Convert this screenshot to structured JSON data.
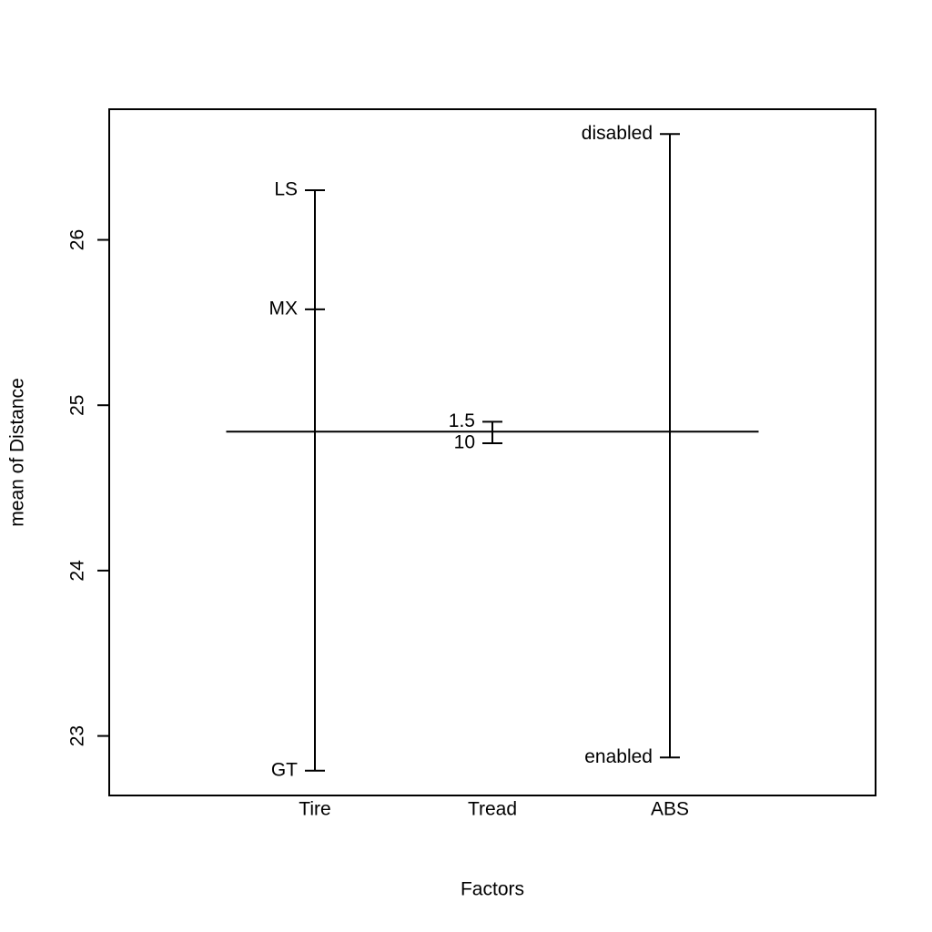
{
  "chart_data": {
    "type": "design",
    "xlabel": "Factors",
    "ylabel": "mean of Distance",
    "categories": [
      "Tire",
      "Tread",
      "ABS"
    ],
    "factors": [
      {
        "levels": [
          "LS",
          "MX",
          "GT"
        ],
        "values": [
          26.3,
          25.58,
          22.79
        ]
      },
      {
        "levels": [
          "1.5",
          "10"
        ],
        "values": [
          24.9,
          24.77
        ]
      },
      {
        "levels": [
          "disabled",
          "enabled"
        ],
        "values": [
          26.64,
          22.87
        ]
      }
    ],
    "grand_mean": 24.84,
    "ylim": [
      22.64,
      26.79
    ],
    "yticks": [
      23,
      24,
      25,
      26
    ],
    "color": "#000000"
  }
}
